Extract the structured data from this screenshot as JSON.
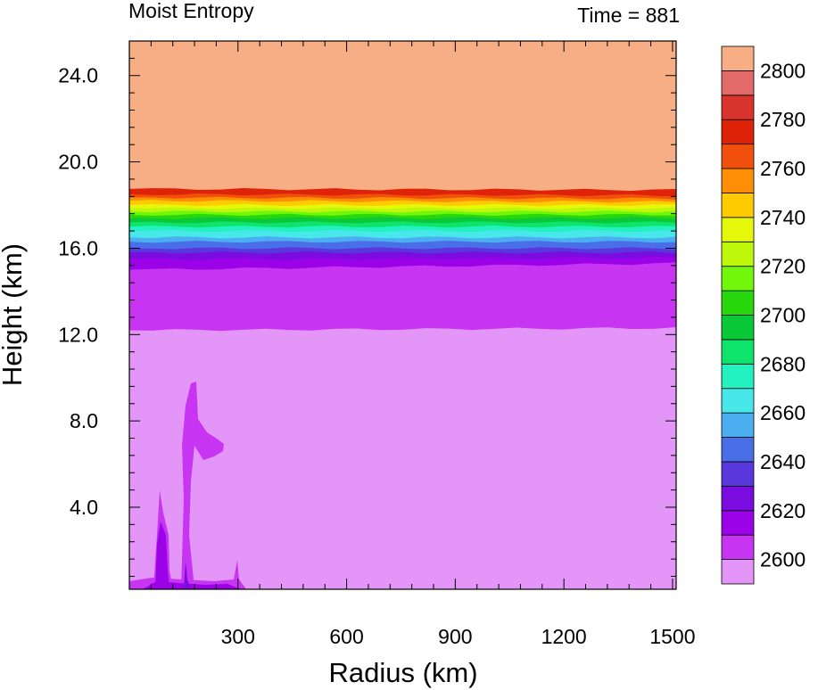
{
  "chart_data": {
    "type": "heatmap",
    "subtype": "filled-contour",
    "title_left": "Moist Entropy",
    "title_right": "Time = 881",
    "xlabel": "Radius (km)",
    "ylabel": "Height (km)",
    "xlim": [
      0,
      1510
    ],
    "ylim": [
      0.2,
      25.6
    ],
    "x_ticks": [
      300,
      600,
      900,
      1200,
      1500
    ],
    "x_tick_labels": [
      "300",
      "600",
      "900",
      "1200",
      "1500"
    ],
    "y_ticks": [
      4,
      8,
      12,
      16,
      20,
      24
    ],
    "y_tick_labels": [
      "4.0",
      "8.0",
      "12.0",
      "16.0",
      "20.0",
      "24.0"
    ],
    "colorbar": {
      "levels": [
        2600,
        2610,
        2620,
        2630,
        2640,
        2650,
        2660,
        2670,
        2680,
        2690,
        2700,
        2710,
        2720,
        2730,
        2740,
        2750,
        2760,
        2770,
        2780,
        2790,
        2800
      ],
      "labels": [
        "2600",
        "2620",
        "2640",
        "2660",
        "2680",
        "2700",
        "2720",
        "2740",
        "2760",
        "2780",
        "2800"
      ],
      "colors": [
        "#e495f8",
        "#c735f3",
        "#9c02e8",
        "#7a0cdf",
        "#5838dc",
        "#4a6de8",
        "#4aaef0",
        "#48e8ea",
        "#23f2c0",
        "#0ee36b",
        "#0bc838",
        "#28d80c",
        "#72f70b",
        "#bef60c",
        "#e5f80a",
        "#fecb01",
        "#fe8e05",
        "#f0500b",
        "#df2309",
        "#d8332d",
        "#e26a69",
        "#f8ae85"
      ]
    },
    "layers": [
      {
        "x": [
          0,
          1510
        ],
        "height_bottom": 12.3,
        "height_top": 18.7,
        "value_range": [
          2610,
          2790
        ],
        "note_source": "stratified band"
      },
      {
        "x": [
          0,
          1510
        ],
        "height_bottom": 18.7,
        "height_top": 25.6,
        "value": ">2800"
      },
      {
        "x": [
          0,
          1510
        ],
        "height_bottom": 0.2,
        "height_top": 12.3,
        "value": "<2610"
      }
    ]
  }
}
